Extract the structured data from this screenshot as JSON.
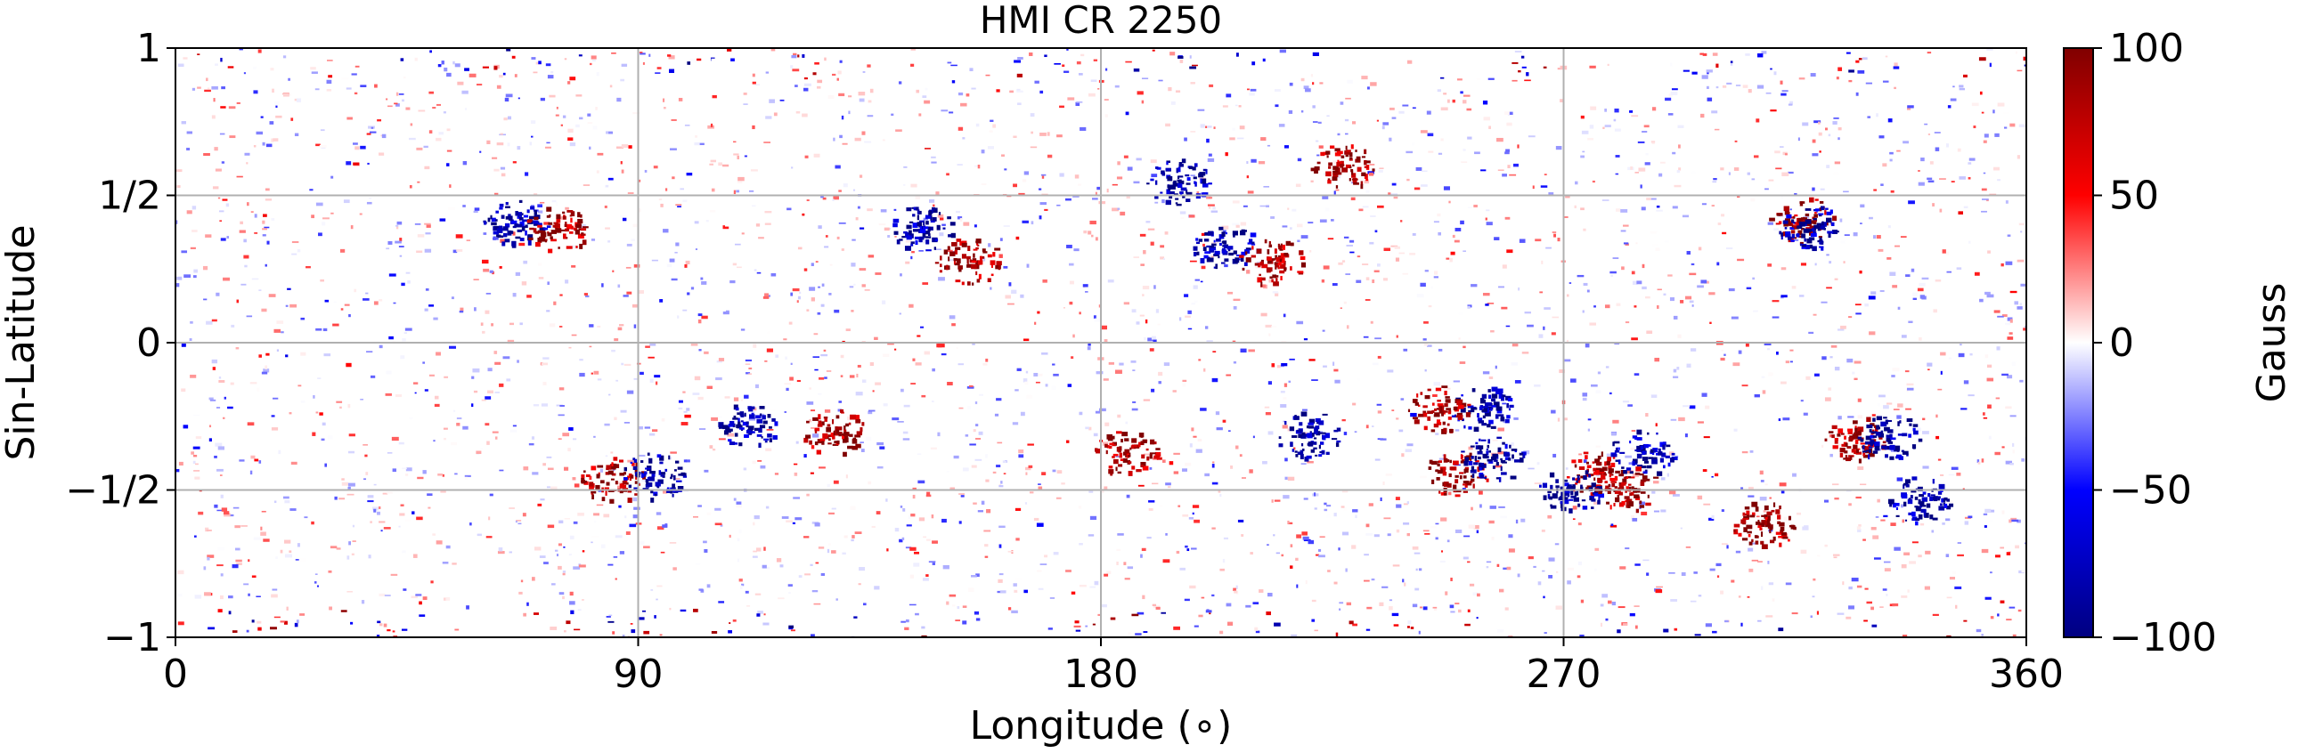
{
  "chart_data": {
    "type": "heatmap",
    "title": "HMI CR 2250",
    "xlabel": "Longitude (∘)",
    "ylabel": "Sin-Latitude",
    "xlim": [
      0,
      360
    ],
    "ylim": [
      -1,
      1
    ],
    "x_ticks": [
      {
        "value": 0,
        "label": "0"
      },
      {
        "value": 90,
        "label": "90"
      },
      {
        "value": 180,
        "label": "180"
      },
      {
        "value": 270,
        "label": "270"
      },
      {
        "value": 360,
        "label": "360"
      }
    ],
    "y_ticks": [
      {
        "value": 1,
        "label": "1"
      },
      {
        "value": 0.5,
        "label": "1/2"
      },
      {
        "value": 0,
        "label": "0"
      },
      {
        "value": -0.5,
        "label": "−1/2"
      },
      {
        "value": -1,
        "label": "−1"
      }
    ],
    "grid": true,
    "colorbar": {
      "label": "Gauss",
      "colormap": "seismic",
      "range": [
        -100,
        100
      ],
      "ticks": [
        {
          "value": 100,
          "label": "100"
        },
        {
          "value": 50,
          "label": "50"
        },
        {
          "value": 0,
          "label": "0"
        },
        {
          "value": -50,
          "label": "−50"
        },
        {
          "value": -100,
          "label": "−100"
        }
      ],
      "colors": {
        "max": "#800000",
        "high": "#ff0000",
        "zero": "#ffffff",
        "low": "#0000ff",
        "min": "#000080"
      }
    },
    "active_regions": [
      {
        "lon": 66,
        "sinlat": 0.41,
        "value": -100
      },
      {
        "lon": 74,
        "sinlat": 0.39,
        "value": 100
      },
      {
        "lon": 145,
        "sinlat": 0.39,
        "value": -100
      },
      {
        "lon": 154,
        "sinlat": 0.28,
        "value": 100
      },
      {
        "lon": 204,
        "sinlat": 0.33,
        "value": -100
      },
      {
        "lon": 213,
        "sinlat": 0.28,
        "value": 100
      },
      {
        "lon": 254,
        "sinlat": -0.22,
        "value": -100
      },
      {
        "lon": 246,
        "sinlat": -0.22,
        "value": 100
      },
      {
        "lon": 249,
        "sinlat": -0.44,
        "value": 100
      },
      {
        "lon": 256,
        "sinlat": -0.39,
        "value": -100
      },
      {
        "lon": 85,
        "sinlat": -0.46,
        "value": 100
      },
      {
        "lon": 93,
        "sinlat": -0.45,
        "value": -100
      },
      {
        "lon": 276,
        "sinlat": -0.44,
        "value": 100
      },
      {
        "lon": 285,
        "sinlat": -0.37,
        "value": -100
      },
      {
        "lon": 271,
        "sinlat": -0.5,
        "value": -100
      },
      {
        "lon": 282,
        "sinlat": -0.49,
        "value": 100
      },
      {
        "lon": 326,
        "sinlat": -0.32,
        "value": 100
      },
      {
        "lon": 333,
        "sinlat": -0.32,
        "value": -100
      },
      {
        "lon": 339,
        "sinlat": -0.53,
        "value": -100
      },
      {
        "lon": 309,
        "sinlat": -0.61,
        "value": 100
      },
      {
        "lon": 316,
        "sinlat": 0.42,
        "value": 100
      },
      {
        "lon": 318,
        "sinlat": 0.39,
        "value": -100
      },
      {
        "lon": 227,
        "sinlat": 0.6,
        "value": 100
      },
      {
        "lon": 195,
        "sinlat": 0.55,
        "value": -100
      },
      {
        "lon": 111,
        "sinlat": -0.27,
        "value": -100
      },
      {
        "lon": 128,
        "sinlat": -0.3,
        "value": 100
      },
      {
        "lon": 185,
        "sinlat": -0.37,
        "value": 100
      },
      {
        "lon": 220,
        "sinlat": -0.31,
        "value": -100
      }
    ]
  }
}
